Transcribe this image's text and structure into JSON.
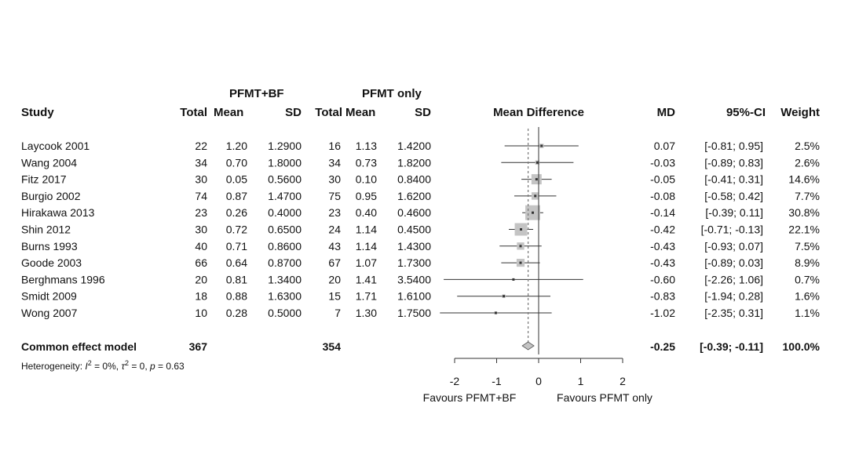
{
  "chart_data": {
    "type": "forest",
    "group_headers": {
      "experimental": "PFMT+BF",
      "control": "PFMT only"
    },
    "columns": {
      "study": "Study",
      "e_total": "Total",
      "e_mean": "Mean",
      "e_sd": "SD",
      "c_total": "Total",
      "c_mean": "Mean",
      "c_sd": "SD",
      "plot": "Mean Difference",
      "md": "MD",
      "ci": "95%-CI",
      "weight": "Weight"
    },
    "studies": [
      {
        "name": "Laycook 2001",
        "e_total": "22",
        "e_mean": "1.20",
        "e_sd": "1.2900",
        "c_total": "16",
        "c_mean": "1.13",
        "c_sd": "1.4200",
        "md": 0.07,
        "lo": -0.81,
        "hi": 0.95,
        "md_text": "0.07",
        "ci_text": "[-0.81; 0.95]",
        "weight_text": "2.5%",
        "weight": 2.5
      },
      {
        "name": "Wang 2004",
        "e_total": "34",
        "e_mean": "0.70",
        "e_sd": "1.8000",
        "c_total": "34",
        "c_mean": "0.73",
        "c_sd": "1.8200",
        "md": -0.03,
        "lo": -0.89,
        "hi": 0.83,
        "md_text": "-0.03",
        "ci_text": "[-0.89; 0.83]",
        "weight_text": "2.6%",
        "weight": 2.6
      },
      {
        "name": "Fitz 2017",
        "e_total": "30",
        "e_mean": "0.05",
        "e_sd": "0.5600",
        "c_total": "30",
        "c_mean": "0.10",
        "c_sd": "0.8400",
        "md": -0.05,
        "lo": -0.41,
        "hi": 0.31,
        "md_text": "-0.05",
        "ci_text": "[-0.41; 0.31]",
        "weight_text": "14.6%",
        "weight": 14.6
      },
      {
        "name": "Burgio 2002",
        "e_total": "74",
        "e_mean": "0.87",
        "e_sd": "1.4700",
        "c_total": "75",
        "c_mean": "0.95",
        "c_sd": "1.6200",
        "md": -0.08,
        "lo": -0.58,
        "hi": 0.42,
        "md_text": "-0.08",
        "ci_text": "[-0.58; 0.42]",
        "weight_text": "7.7%",
        "weight": 7.7
      },
      {
        "name": "Hirakawa 2013",
        "e_total": "23",
        "e_mean": "0.26",
        "e_sd": "0.4000",
        "c_total": "23",
        "c_mean": "0.40",
        "c_sd": "0.4600",
        "md": -0.14,
        "lo": -0.39,
        "hi": 0.11,
        "md_text": "-0.14",
        "ci_text": "[-0.39; 0.11]",
        "weight_text": "30.8%",
        "weight": 30.8
      },
      {
        "name": "Shin 2012",
        "e_total": "30",
        "e_mean": "0.72",
        "e_sd": "0.6500",
        "c_total": "24",
        "c_mean": "1.14",
        "c_sd": "0.4500",
        "md": -0.42,
        "lo": -0.71,
        "hi": -0.13,
        "md_text": "-0.42",
        "ci_text": "[-0.71; -0.13]",
        "weight_text": "22.1%",
        "weight": 22.1
      },
      {
        "name": "Burns 1993",
        "e_total": "40",
        "e_mean": "0.71",
        "e_sd": "0.8600",
        "c_total": "43",
        "c_mean": "1.14",
        "c_sd": "1.4300",
        "md": -0.43,
        "lo": -0.93,
        "hi": 0.07,
        "md_text": "-0.43",
        "ci_text": "[-0.93; 0.07]",
        "weight_text": "7.5%",
        "weight": 7.5
      },
      {
        "name": "Goode 2003",
        "e_total": "66",
        "e_mean": "0.64",
        "e_sd": "0.8700",
        "c_total": "67",
        "c_mean": "1.07",
        "c_sd": "1.7300",
        "md": -0.43,
        "lo": -0.89,
        "hi": 0.03,
        "md_text": "-0.43",
        "ci_text": "[-0.89; 0.03]",
        "weight_text": "8.9%",
        "weight": 8.9
      },
      {
        "name": "Berghmans 1996",
        "e_total": "20",
        "e_mean": "0.81",
        "e_sd": "1.3400",
        "c_total": "20",
        "c_mean": "1.41",
        "c_sd": "3.5400",
        "md": -0.6,
        "lo": -2.26,
        "hi": 1.06,
        "md_text": "-0.60",
        "ci_text": "[-2.26; 1.06]",
        "weight_text": "0.7%",
        "weight": 0.7
      },
      {
        "name": "Smidt 2009",
        "e_total": "18",
        "e_mean": "0.88",
        "e_sd": "1.6300",
        "c_total": "15",
        "c_mean": "1.71",
        "c_sd": "1.6100",
        "md": -0.83,
        "lo": -1.94,
        "hi": 0.28,
        "md_text": "-0.83",
        "ci_text": "[-1.94; 0.28]",
        "weight_text": "1.6%",
        "weight": 1.6
      },
      {
        "name": "Wong 2007",
        "e_total": "10",
        "e_mean": "0.28",
        "e_sd": "0.5000",
        "c_total": "7",
        "c_mean": "1.30",
        "c_sd": "1.7500",
        "md": -1.02,
        "lo": -2.35,
        "hi": 0.31,
        "md_text": "-1.02",
        "ci_text": "[-2.35; 0.31]",
        "weight_text": "1.1%",
        "weight": 1.1
      }
    ],
    "summary": {
      "name": "Common effect model",
      "e_total": "367",
      "c_total": "354",
      "md": -0.25,
      "lo": -0.39,
      "hi": -0.11,
      "md_text": "-0.25",
      "ci_text": "[-0.39; -0.11]",
      "weight_text": "100.0%"
    },
    "heterogeneity": {
      "prefix": "Heterogeneity: ",
      "i2": "= 0%, ",
      "tau2": "= 0, ",
      "p": "= 0.63"
    },
    "x_axis": {
      "ticks": [
        -2,
        -1,
        0,
        1,
        2
      ],
      "range": [
        -2,
        2
      ]
    },
    "favours": {
      "left": "Favours PFMT+BF",
      "right": "Favours PFMT only"
    }
  }
}
